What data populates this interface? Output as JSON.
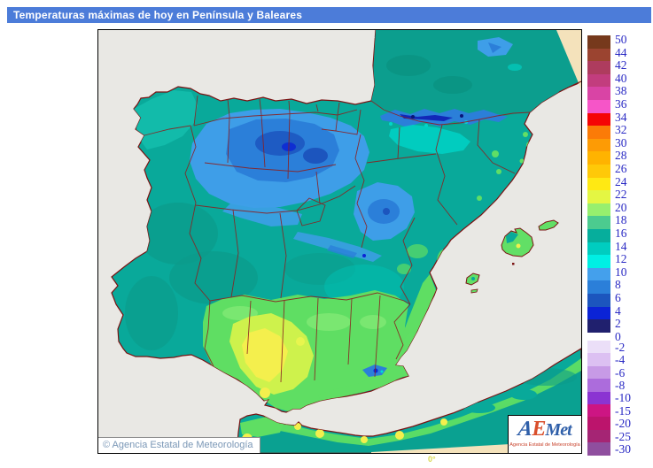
{
  "title_bar": {
    "text": "Temperaturas máximas de hoy en Península y Baleares",
    "background": "#4C7CD9",
    "text_color": "#FFFFFF"
  },
  "map": {
    "copyright_text": "© Agencia Estatal de Meteorología",
    "meridian_label": "0°",
    "colors": {
      "sea": "#E9E8E4",
      "land_base": "#09A99A",
      "no_data_edge": "#F4E2BB",
      "coastline": "#7A1212",
      "province_border": "#8B2020"
    },
    "logo": {
      "letters": [
        {
          "char": "A",
          "color": "#2F5FA9"
        },
        {
          "char": "E",
          "color": "#D94F2B"
        },
        {
          "char": "Met",
          "color": "#2F5FA9"
        }
      ],
      "subtitle": "Agencia Estatal de Meteorología"
    }
  },
  "legend": {
    "label_color": "#2A2AC4",
    "upper": {
      "boundary_labels": [
        "50",
        "44",
        "42",
        "40",
        "38",
        "36",
        "34",
        "32",
        "30",
        "28",
        "26",
        "24",
        "22",
        "20",
        "18",
        "16",
        "14",
        "12",
        "10",
        "8",
        "6",
        "4",
        "2",
        "0"
      ],
      "block_colors": [
        "#76391C",
        "#9B4430",
        "#AE3C5E",
        "#C23D7E",
        "#D944A5",
        "#F655C8",
        "#F50505",
        "#FB7B07",
        "#FD9B05",
        "#FFB300",
        "#FFC908",
        "#FFE913",
        "#E4F643",
        "#97EF6E",
        "#4CCB8F",
        "#06AE9C",
        "#00CDC0",
        "#00EFE4",
        "#44A0EC",
        "#2B7FD9",
        "#1C55BE",
        "#0B23D6",
        "#20206E"
      ]
    },
    "lower": {
      "block_labels": [
        "-2",
        "-4",
        "-6",
        "-8",
        "-10",
        "-15",
        "-20",
        "-25",
        "-30"
      ],
      "block_colors": [
        "#EBDFF8",
        "#DCC0F2",
        "#C79AE6",
        "#AC6CDC",
        "#8B34D2",
        "#CD1583",
        "#BC146C",
        "#A52574",
        "#8F4E9E"
      ]
    }
  }
}
